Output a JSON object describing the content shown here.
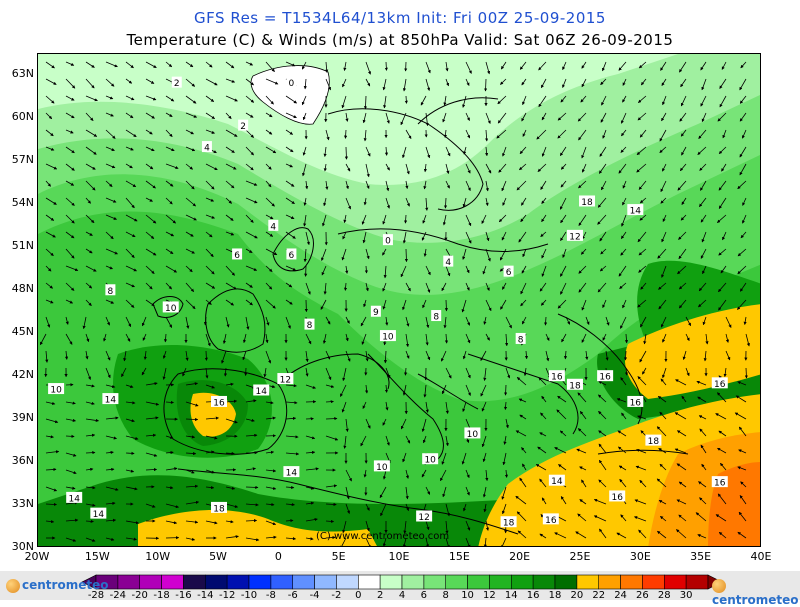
{
  "header": {
    "line1": "GFS Res = T1534L64/13km   Init: Fri 00Z 25-09-2015",
    "line2": "Temperature (C) & Winds (m/s) at 850hPa  Valid: Sat 06Z 26-09-2015"
  },
  "axes": {
    "lat_labels": [
      "63N",
      "60N",
      "57N",
      "54N",
      "51N",
      "48N",
      "45N",
      "42N",
      "39N",
      "36N",
      "33N",
      "30N"
    ],
    "lon_labels": [
      "20W",
      "15W",
      "10W",
      "5W",
      "0",
      "5E",
      "10E",
      "15E",
      "20E",
      "25E",
      "30E",
      "35E",
      "40E"
    ]
  },
  "watermark": "(C) www.centrometeo.com",
  "colorbar": {
    "labels": [
      "-28",
      "-24",
      "-20",
      "-18",
      "-16",
      "-14",
      "-12",
      "-10",
      "-8",
      "-6",
      "-4",
      "-2",
      "0",
      "2",
      "4",
      "6",
      "8",
      "10",
      "12",
      "14",
      "16",
      "18",
      "20",
      "22",
      "24",
      "26",
      "28",
      "30"
    ],
    "colors": [
      "#6a007a",
      "#8a0094",
      "#b000b8",
      "#d000d0",
      "#1a0a4a",
      "#000a70",
      "#0010b0",
      "#0030ff",
      "#3060ff",
      "#6090ff",
      "#90b8ff",
      "#c0d8ff",
      "#ffffff",
      "#c8ffc8",
      "#a0f0a0",
      "#78e478",
      "#58d858",
      "#3cc83c",
      "#22b422",
      "#10a010",
      "#088808",
      "#006e00",
      "#ffc800",
      "#ffa000",
      "#ff7800",
      "#ff3c00",
      "#e00000",
      "#b40000"
    ],
    "logo_text": "centrometeo"
  },
  "map_labels": [
    {
      "text": "2",
      "lon": -8.5,
      "lat": 62.5
    },
    {
      "text": "0",
      "lon": 1,
      "lat": 62.5
    },
    {
      "text": "2",
      "lon": -3,
      "lat": 59.5
    },
    {
      "text": "4",
      "lon": -6,
      "lat": 58
    },
    {
      "text": "4",
      "lon": -0.5,
      "lat": 52.5
    },
    {
      "text": "6",
      "lon": -3.5,
      "lat": 50.5
    },
    {
      "text": "6",
      "lon": 1,
      "lat": 50.5
    },
    {
      "text": "0",
      "lon": 9,
      "lat": 51.5
    },
    {
      "text": "4",
      "lon": 14,
      "lat": 50
    },
    {
      "text": "6",
      "lon": 19,
      "lat": 49.3
    },
    {
      "text": "8",
      "lon": -14,
      "lat": 48
    },
    {
      "text": "10",
      "lon": -9,
      "lat": 46.8
    },
    {
      "text": "9",
      "lon": 8,
      "lat": 46.5
    },
    {
      "text": "8",
      "lon": 13,
      "lat": 46.2
    },
    {
      "text": "8",
      "lon": 2.5,
      "lat": 45.6
    },
    {
      "text": "10",
      "lon": 9,
      "lat": 44.8
    },
    {
      "text": "8",
      "lon": 20,
      "lat": 44.6
    },
    {
      "text": "18",
      "lon": 25.5,
      "lat": 54.2
    },
    {
      "text": "14",
      "lon": 29.5,
      "lat": 53.6
    },
    {
      "text": "12",
      "lon": 24.5,
      "lat": 51.8
    },
    {
      "text": "12",
      "lon": 0.5,
      "lat": 41.8
    },
    {
      "text": "10",
      "lon": -18.5,
      "lat": 41.1
    },
    {
      "text": "14",
      "lon": -14,
      "lat": 40.4
    },
    {
      "text": "16",
      "lon": -5,
      "lat": 40.2
    },
    {
      "text": "14",
      "lon": -1.5,
      "lat": 41
    },
    {
      "text": "16",
      "lon": 23,
      "lat": 42
    },
    {
      "text": "18",
      "lon": 24.5,
      "lat": 41.4
    },
    {
      "text": "16",
      "lon": 27,
      "lat": 42
    },
    {
      "text": "16",
      "lon": 36.5,
      "lat": 41.5
    },
    {
      "text": "16",
      "lon": 29.5,
      "lat": 40.2
    },
    {
      "text": "10",
      "lon": 16,
      "lat": 38
    },
    {
      "text": "18",
      "lon": 31,
      "lat": 37.5
    },
    {
      "text": "10",
      "lon": 8.5,
      "lat": 35.7
    },
    {
      "text": "10",
      "lon": 12.5,
      "lat": 36.2
    },
    {
      "text": "14",
      "lon": 1,
      "lat": 35.3
    },
    {
      "text": "14",
      "lon": 23,
      "lat": 34.7
    },
    {
      "text": "16",
      "lon": 28,
      "lat": 33.6
    },
    {
      "text": "16",
      "lon": 36.5,
      "lat": 34.6
    },
    {
      "text": "14",
      "lon": -17,
      "lat": 33.5
    },
    {
      "text": "14",
      "lon": -15,
      "lat": 32.4
    },
    {
      "text": "18",
      "lon": -5,
      "lat": 32.8
    },
    {
      "text": "12",
      "lon": 12,
      "lat": 32.2
    },
    {
      "text": "18",
      "lon": 19,
      "lat": 31.8
    },
    {
      "text": "16",
      "lon": 22.5,
      "lat": 32
    }
  ]
}
